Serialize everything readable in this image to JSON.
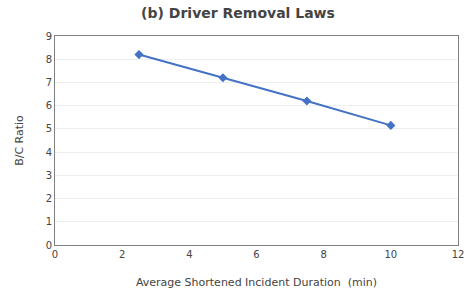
{
  "chart_data": {
    "type": "line",
    "title": "(b) Driver Removal Laws",
    "xlabel": "Average Shortened Incident Duration  (min)",
    "ylabel": "B/C Ratio",
    "x": [
      2.5,
      5.0,
      7.5,
      10.0
    ],
    "values": [
      8.2,
      7.2,
      6.2,
      5.15
    ],
    "color": "#4472C4",
    "marker": "diamond",
    "line_style": "solid",
    "xlim": [
      0,
      12
    ],
    "ylim": [
      0,
      9
    ],
    "xticks": [
      0,
      2,
      4,
      6,
      8,
      10,
      12
    ],
    "yticks": [
      0,
      1,
      2,
      3,
      4,
      5,
      6,
      7,
      8,
      9
    ],
    "grid": "y"
  }
}
